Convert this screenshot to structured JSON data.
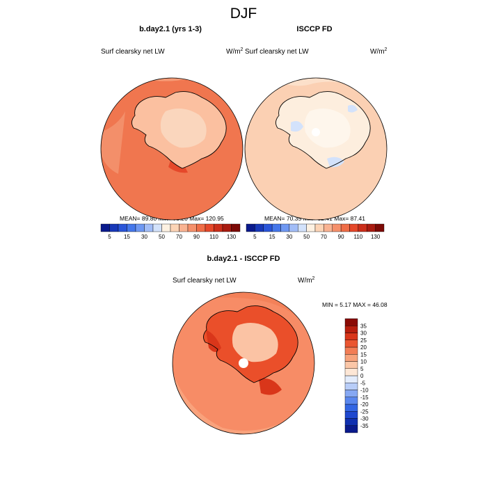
{
  "title": "DJF",
  "colors": {
    "land_outline": "#000000",
    "missing": "#ffffff"
  },
  "chart_data": [
    {
      "type": "heatmap",
      "title": "b.day2.1 (yrs 1-3)",
      "left_label": "Surf clearsky net LW",
      "units_base": "W/m",
      "units_exp": "2",
      "stats": {
        "mean_label": "MEAN=",
        "mean": "89.80",
        "min_label": "Min=",
        "min": "73.20",
        "max_label": "Max=",
        "max": "120.95"
      },
      "colorbar": {
        "orientation": "horizontal",
        "levels": [
          5,
          10,
          15,
          20,
          30,
          40,
          50,
          60,
          70,
          80,
          90,
          100,
          110,
          120,
          130
        ],
        "tick_labels": [
          "5",
          "15",
          "30",
          "50",
          "70",
          "90",
          "110",
          "130"
        ],
        "colors": [
          "#0a1a8c",
          "#1838b8",
          "#2a55d8",
          "#4577ea",
          "#6f98f2",
          "#a2bdf7",
          "#d3e2fb",
          "#fdf1e2",
          "#fcd4b6",
          "#f9b392",
          "#f5906b",
          "#ef6d47",
          "#e5482a",
          "#cb2e1a",
          "#a91b10",
          "#7c0a06"
        ]
      },
      "field": {
        "ocean_color": "#f0764f",
        "land_color": "#fbc0a0",
        "interior_color": "#fad6bd"
      }
    },
    {
      "type": "heatmap",
      "title": "ISCCP FD",
      "left_label": "Surf clearsky net LW",
      "units_base": "W/m",
      "units_exp": "2",
      "stats": {
        "mean_label": "MEAN=",
        "mean": "70.35",
        "min_label": "Min=",
        "min": "52.41",
        "max_label": "Max=",
        "max": "87.41"
      },
      "colorbar": {
        "orientation": "horizontal",
        "levels": [
          5,
          10,
          15,
          20,
          30,
          40,
          50,
          60,
          70,
          80,
          90,
          100,
          110,
          120,
          130
        ],
        "tick_labels": [
          "5",
          "15",
          "30",
          "50",
          "70",
          "90",
          "110",
          "130"
        ],
        "colors": [
          "#0a1a8c",
          "#1838b8",
          "#2a55d8",
          "#4577ea",
          "#6f98f2",
          "#a2bdf7",
          "#d3e2fb",
          "#fdf1e2",
          "#fcd4b6",
          "#f9b392",
          "#f5906b",
          "#ef6d47",
          "#e5482a",
          "#cb2e1a",
          "#a91b10",
          "#7c0a06"
        ]
      },
      "field": {
        "ocean_color": "#fbd0b3",
        "land_color": "#fdeede",
        "interior_color": "#fef6ec"
      }
    },
    {
      "type": "heatmap",
      "title": "b.day2.1 - ISCCP FD",
      "left_label": "Surf clearsky net LW",
      "units_base": "W/m",
      "units_exp": "2",
      "stats": {
        "min_label": "MIN =",
        "min": "5.17",
        "max_label": "MAX =",
        "max": "46.08"
      },
      "colorbar": {
        "orientation": "vertical",
        "levels": [
          -35,
          -30,
          -25,
          -20,
          -15,
          -10,
          -5,
          0,
          5,
          10,
          15,
          20,
          25,
          30,
          35
        ],
        "tick_labels": [
          "-35",
          "-30",
          "-25",
          "-20",
          "-15",
          "-10",
          "-5",
          "0",
          "5",
          "10",
          "15",
          "20",
          "25",
          "30",
          "35"
        ],
        "colors": [
          "#0a1a8c",
          "#1030b0",
          "#1f48cf",
          "#3366e3",
          "#5a87ee",
          "#86a8f3",
          "#b8cdf8",
          "#e3ecfc",
          "#fde7d6",
          "#fbc7a8",
          "#f7a37c",
          "#f27d55",
          "#ea5631",
          "#d9361a",
          "#b81e0e",
          "#8a0b05"
        ]
      },
      "field": {
        "ocean_color": "#f78c66",
        "land_color": "#ea4f2a",
        "interior_color": "#fbc3a4"
      }
    }
  ]
}
